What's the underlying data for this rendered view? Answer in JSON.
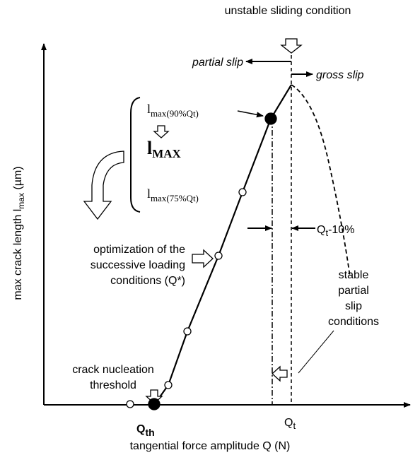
{
  "top_label": "unstable sliding condition",
  "partial_slip": "partial slip",
  "gross_slip": "gross slip",
  "y_axis_label": {
    "main": "max crack length l",
    "sub": "max",
    "unit": " (µm)"
  },
  "x_axis_label": "tangential force amplitude Q (N)",
  "l_90": {
    "main": "l",
    "sub": "max(90%Qt)"
  },
  "l_MAX": {
    "main": "l",
    "sub": "MAX"
  },
  "l_75": {
    "main": "l",
    "sub": "max(75%Qt)"
  },
  "qt_minus": {
    "main": "Q",
    "sub": "t",
    "rest": "-10%"
  },
  "optimization": [
    "optimization of the",
    "successive loading",
    "conditions (Q*)"
  ],
  "stable": [
    "stable",
    "partial",
    "slip",
    "conditions"
  ],
  "nucleation": [
    "crack nucleation",
    "threshold"
  ],
  "q_th": {
    "main": "Q",
    "sub": "th"
  },
  "q_t": {
    "main": "Q",
    "sub": "t"
  }
}
